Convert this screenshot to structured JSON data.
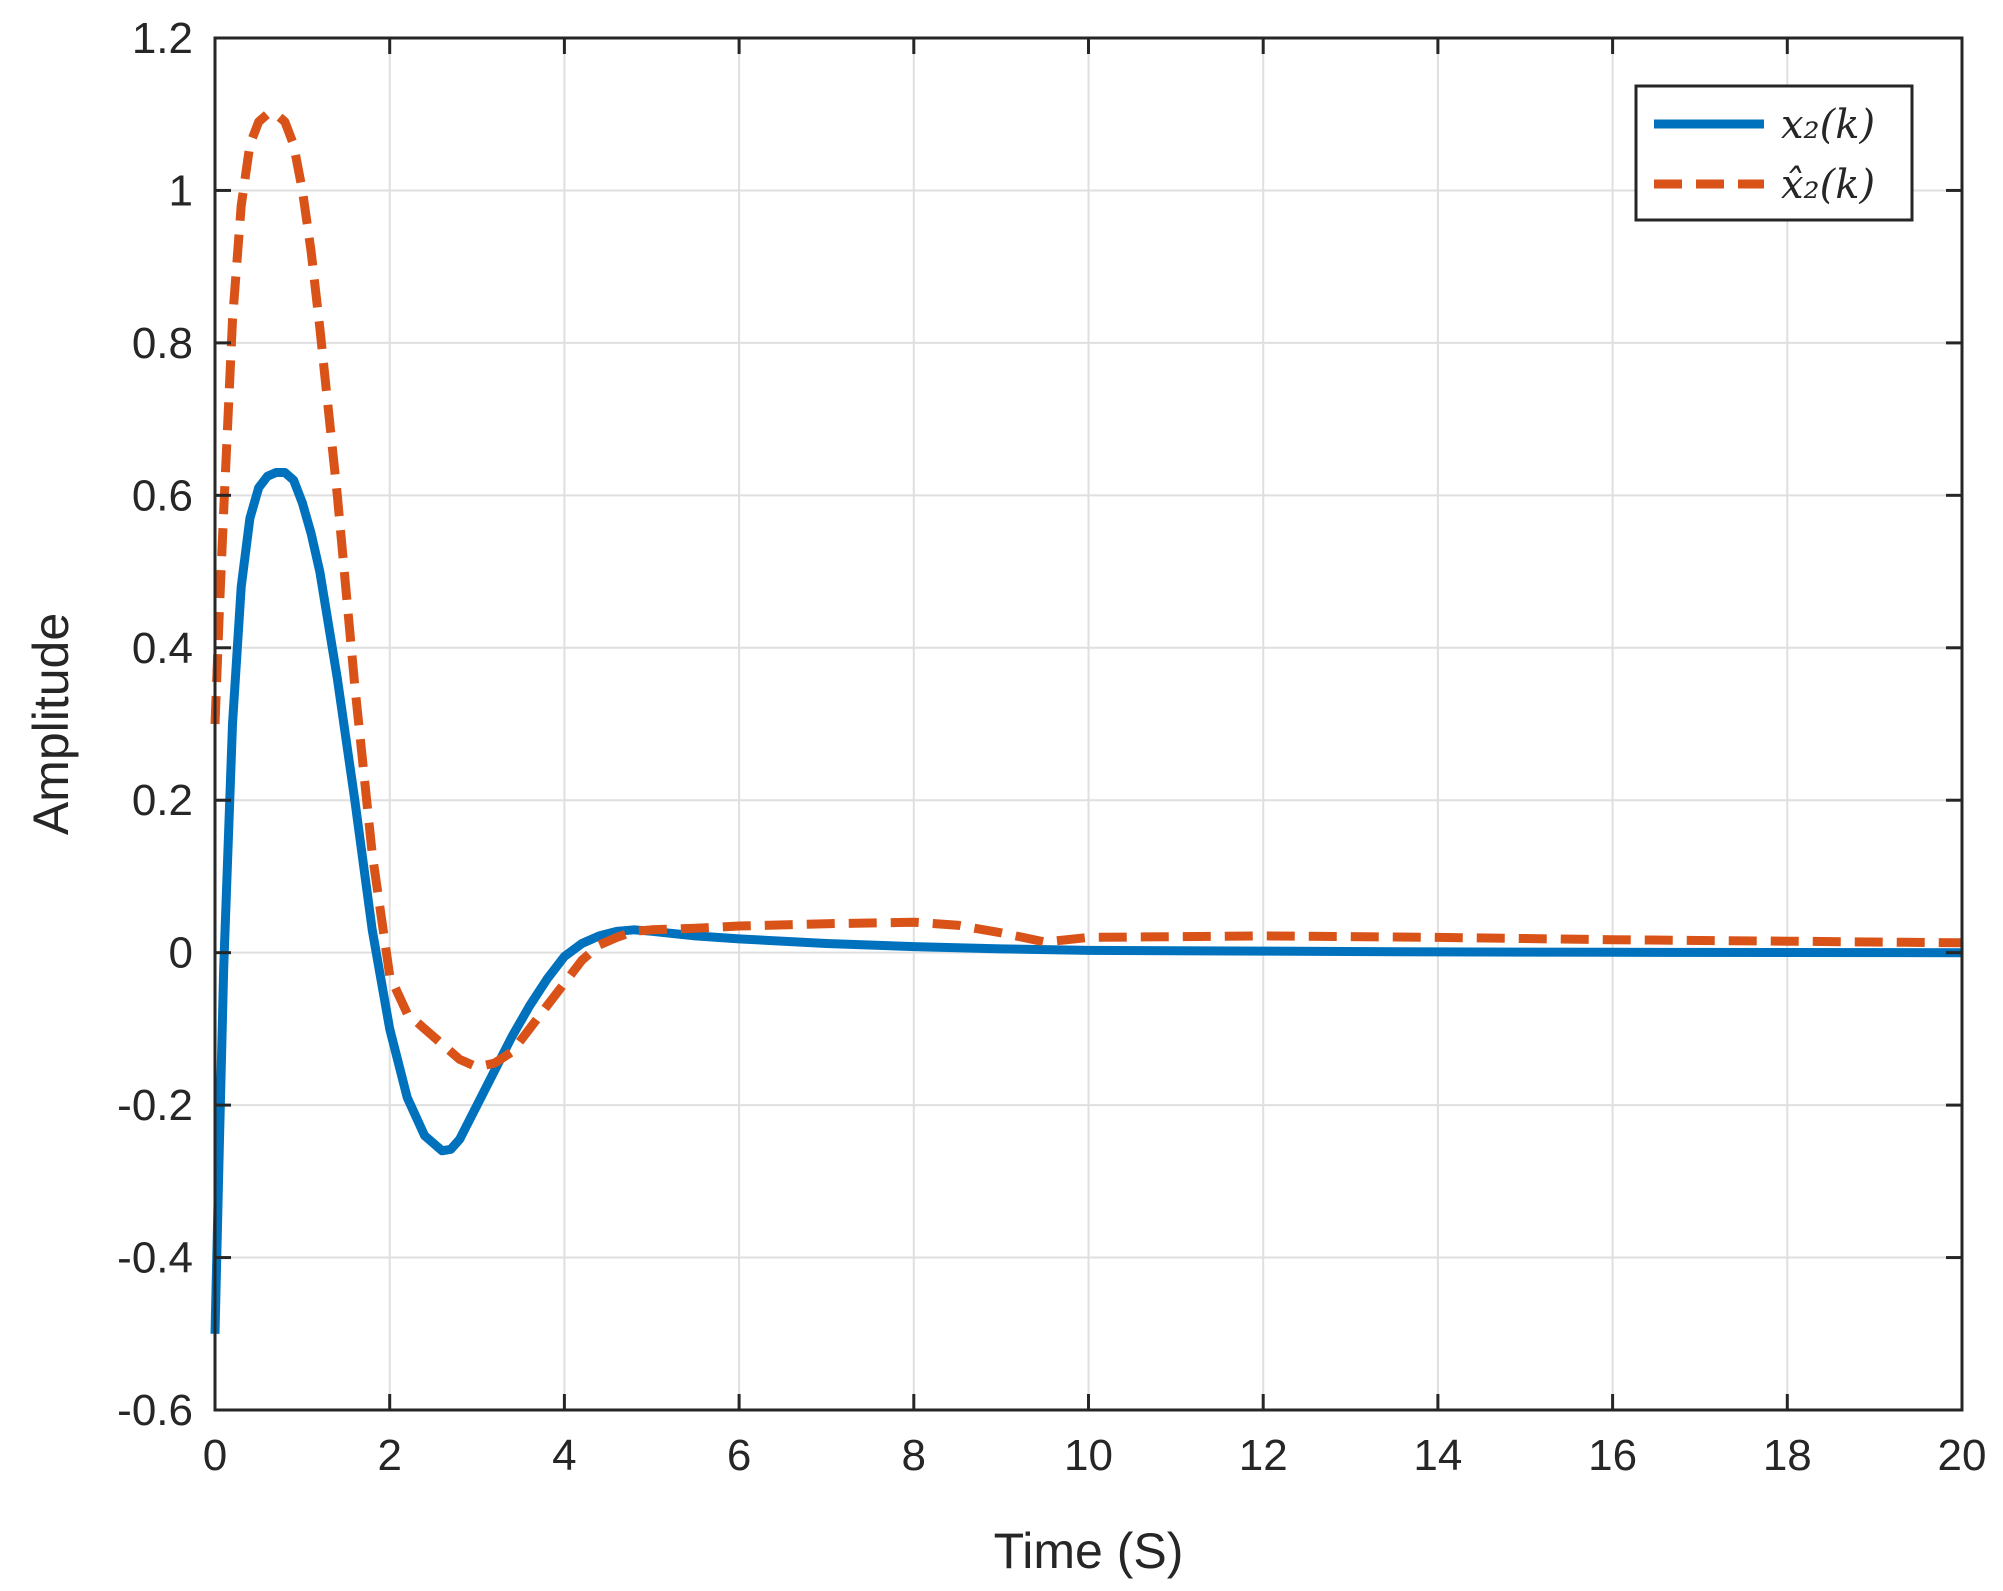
{
  "chart_data": {
    "type": "line",
    "title": "",
    "xlabel": "Time (S)",
    "ylabel": "Amplitude",
    "xlim": [
      0,
      20
    ],
    "ylim": [
      -0.6,
      1.2
    ],
    "xticks": [
      0,
      2,
      4,
      6,
      8,
      10,
      12,
      14,
      16,
      18,
      20
    ],
    "yticks": [
      -0.6,
      -0.4,
      -0.2,
      0,
      0.2,
      0.4,
      0.6,
      0.8,
      1,
      1.2
    ],
    "xtick_labels": [
      "0",
      "2",
      "4",
      "6",
      "8",
      "10",
      "12",
      "14",
      "16",
      "18",
      "20"
    ],
    "ytick_labels": [
      "-0.6",
      "-0.4",
      "-0.2",
      "0",
      "0.2",
      "0.4",
      "0.6",
      "0.8",
      "1",
      "1.2"
    ],
    "grid": true,
    "legend_position": "top-right",
    "series": [
      {
        "name": "x₂(k)",
        "color": "#0072BD",
        "style": "solid",
        "x": [
          0,
          0.05,
          0.1,
          0.2,
          0.3,
          0.4,
          0.5,
          0.6,
          0.7,
          0.8,
          0.9,
          1.0,
          1.1,
          1.2,
          1.4,
          1.6,
          1.8,
          2.0,
          2.2,
          2.4,
          2.6,
          2.7,
          2.8,
          3.0,
          3.2,
          3.4,
          3.6,
          3.8,
          4.0,
          4.2,
          4.4,
          4.6,
          4.8,
          5.0,
          5.5,
          6,
          7,
          8,
          9,
          10,
          12,
          14,
          16,
          18,
          20
        ],
        "y": [
          -0.5,
          -0.25,
          -0.02,
          0.3,
          0.48,
          0.57,
          0.61,
          0.625,
          0.63,
          0.63,
          0.62,
          0.59,
          0.55,
          0.5,
          0.36,
          0.2,
          0.03,
          -0.1,
          -0.19,
          -0.24,
          -0.26,
          -0.258,
          -0.245,
          -0.2,
          -0.155,
          -0.11,
          -0.07,
          -0.035,
          -0.005,
          0.012,
          0.022,
          0.028,
          0.03,
          0.028,
          0.022,
          0.018,
          0.012,
          0.008,
          0.005,
          0.003,
          0.002,
          0.001,
          0.0005,
          0.0002,
          0
        ]
      },
      {
        "name": "x̂₂(k)",
        "color": "#D95319",
        "style": "dashed",
        "x": [
          0,
          0.05,
          0.1,
          0.2,
          0.3,
          0.4,
          0.5,
          0.6,
          0.7,
          0.8,
          0.9,
          1.0,
          1.1,
          1.2,
          1.4,
          1.6,
          1.8,
          2.0,
          2.2,
          2.4,
          2.6,
          2.8,
          3.0,
          3.2,
          3.4,
          3.6,
          3.8,
          4.0,
          4.2,
          4.4,
          4.6,
          4.8,
          5.0,
          5.5,
          6,
          7,
          8,
          8.5,
          9,
          9.5,
          10,
          12,
          14,
          16,
          18,
          20
        ],
        "y": [
          0.3,
          0.45,
          0.58,
          0.83,
          0.98,
          1.06,
          1.09,
          1.1,
          1.1,
          1.09,
          1.06,
          1.0,
          0.92,
          0.82,
          0.6,
          0.35,
          0.13,
          -0.03,
          -0.08,
          -0.1,
          -0.12,
          -0.14,
          -0.15,
          -0.145,
          -0.13,
          -0.1,
          -0.07,
          -0.04,
          -0.01,
          0.01,
          0.02,
          0.028,
          0.03,
          0.032,
          0.035,
          0.038,
          0.04,
          0.036,
          0.026,
          0.014,
          0.02,
          0.022,
          0.02,
          0.017,
          0.015,
          0.013
        ]
      }
    ]
  }
}
